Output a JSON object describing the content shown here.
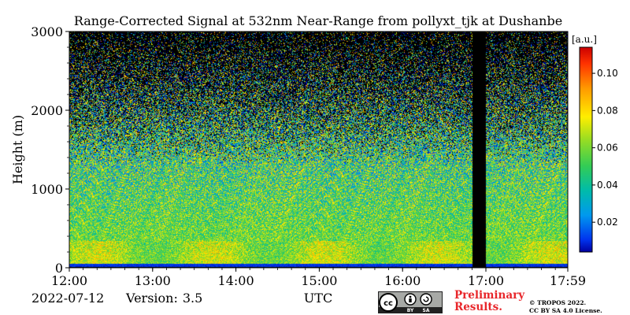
{
  "chart_data": {
    "type": "heatmap",
    "title": "Range-Corrected Signal at 532nm Near-Range from pollyxt_tjk at Dushanbe",
    "xlabel": "UTC",
    "ylabel": "Height (m)",
    "x_ticks": [
      "12:00",
      "13:00",
      "14:00",
      "15:00",
      "16:00",
      "17:00",
      "17:59"
    ],
    "x_tick_hours": [
      12,
      13,
      14,
      15,
      16,
      17,
      17.983
    ],
    "xlim": [
      12,
      17.983
    ],
    "y_ticks": [
      0,
      1000,
      2000,
      3000
    ],
    "ylim": [
      0,
      3000
    ],
    "colorbar": {
      "unit_label": "[a.u.]",
      "ticks": [
        0.02,
        0.04,
        0.06,
        0.08,
        0.1
      ],
      "range": [
        0.004,
        0.114
      ],
      "colormap": "jet"
    },
    "data_gap_utc": [
      16.83,
      17.0
    ],
    "grid": false
  },
  "footer": {
    "date": "2022-07-12",
    "version_label": "Version:",
    "version_value": "3.5",
    "prelim_line1": "Preliminary",
    "prelim_line2": "Results.",
    "copyright_line1": "© TROPOS 2022.",
    "copyright_line2": "CC BY SA 4.0 License."
  },
  "license_badge": {
    "cc": "cc",
    "by": "BY",
    "sa": "SA"
  },
  "colors": {
    "prelim": "#e8262a",
    "badge_bg": "#a7a9a6",
    "badge_dark": "#222222"
  }
}
